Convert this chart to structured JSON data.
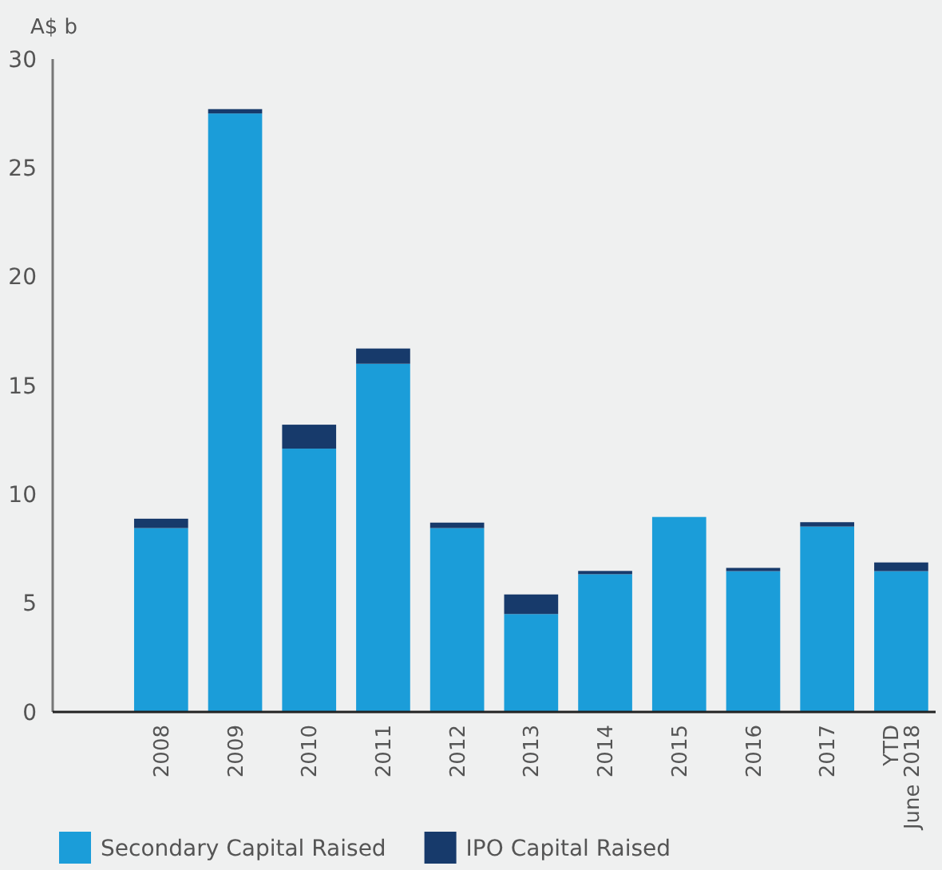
{
  "chart_data": {
    "type": "bar",
    "ylabel": "A$ b",
    "stacked": true,
    "categories": [
      "2008",
      "2009",
      "2010",
      "2011",
      "2012",
      "2013",
      "2014",
      "2015",
      "2016",
      "2017",
      "YTD\nJune 2018"
    ],
    "series": [
      {
        "name": "Secondary Capital Raised",
        "color": "#1b9dd9",
        "values": [
          8.45,
          27.5,
          12.1,
          16.0,
          8.45,
          4.5,
          6.33,
          8.96,
          6.47,
          8.52,
          6.47
        ]
      },
      {
        "name": "IPO Capital Raised",
        "color": "#173a6b",
        "values": [
          0.43,
          0.2,
          1.1,
          0.7,
          0.25,
          0.9,
          0.15,
          0,
          0.15,
          0.2,
          0.4
        ]
      }
    ],
    "ylim": [
      0,
      30
    ],
    "yticks": [
      0,
      5,
      10,
      15,
      20,
      25,
      30
    ],
    "grid": false,
    "legend": "bottom"
  }
}
